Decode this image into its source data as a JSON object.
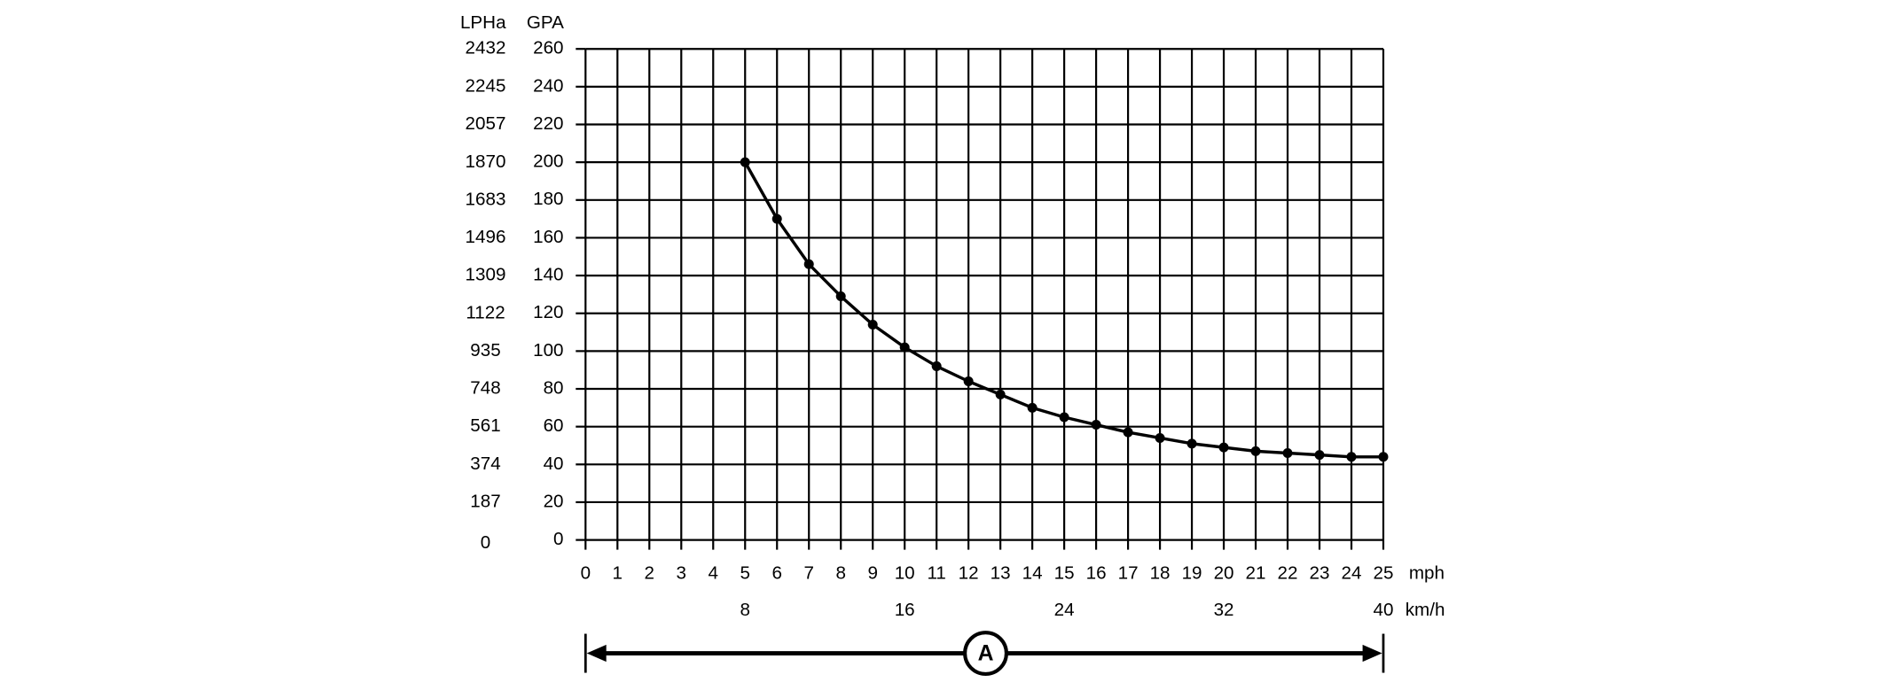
{
  "chart_data": {
    "type": "line",
    "y_label": "GPA",
    "y2_label": "LPHa",
    "x_label": "mph",
    "x2_label": "km/h",
    "annotation": "A",
    "x": [
      5,
      6,
      7,
      8,
      9,
      10,
      11,
      12,
      13,
      14,
      15,
      16,
      17,
      18,
      19,
      20,
      21,
      22,
      23,
      24,
      25
    ],
    "values": [
      200,
      170,
      146,
      129,
      114,
      102,
      92,
      84,
      77,
      70,
      65,
      61,
      57,
      54,
      51,
      49,
      47,
      46,
      45,
      44,
      44
    ],
    "color": "#000000",
    "xlim": [
      0,
      25
    ],
    "xticks": [
      0,
      1,
      2,
      3,
      4,
      5,
      6,
      7,
      8,
      9,
      10,
      11,
      12,
      13,
      14,
      15,
      16,
      17,
      18,
      19,
      20,
      21,
      22,
      23,
      24,
      25
    ],
    "x2lim": [
      0,
      40
    ],
    "x2ticks": [
      8,
      16,
      24,
      32,
      40
    ],
    "ylim": [
      0,
      260
    ],
    "yticks": [
      0,
      20,
      40,
      60,
      80,
      100,
      120,
      140,
      160,
      180,
      200,
      220,
      240,
      260
    ],
    "y2lim": [
      0,
      2432
    ],
    "y2ticks": [
      0,
      187,
      374,
      561,
      748,
      935,
      1122,
      1309,
      1496,
      1683,
      1870,
      2057,
      2245,
      2432
    ],
    "grid": true
  }
}
